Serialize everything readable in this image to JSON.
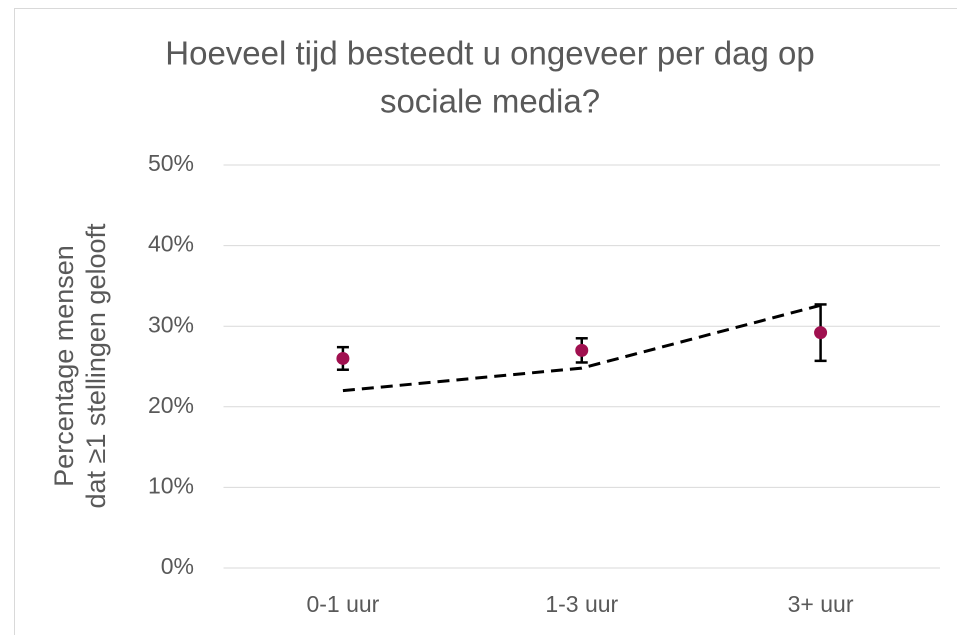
{
  "chart_data": {
    "type": "errorbar",
    "title": [
      "Hoeveel tijd besteedt u ongeveer per dag op",
      "sociale media?"
    ],
    "ylabel": [
      "Percentage mensen",
      "dat ≥1 stellingen gelooft"
    ],
    "categories": [
      "0-1 uur",
      "1-3 uur",
      "3+ uur"
    ],
    "series": [
      {
        "type": "errorbar",
        "color": "#a0104f",
        "error_color": "#000000",
        "values": [
          26,
          27,
          29.2
        ],
        "errors": [
          1.4,
          1.5,
          3.5
        ]
      },
      {
        "type": "line",
        "style": "dashed",
        "color": "#000000",
        "values": [
          22,
          24.8,
          32.6
        ]
      }
    ],
    "ylim": [
      0,
      50
    ],
    "yticks": [
      {
        "value": 0,
        "label": "0%"
      },
      {
        "value": 10,
        "label": "10%"
      },
      {
        "value": 20,
        "label": "20%"
      },
      {
        "value": 30,
        "label": "30%"
      },
      {
        "value": 40,
        "label": "40%"
      },
      {
        "value": 50,
        "label": "50%"
      }
    ],
    "grid": true
  }
}
